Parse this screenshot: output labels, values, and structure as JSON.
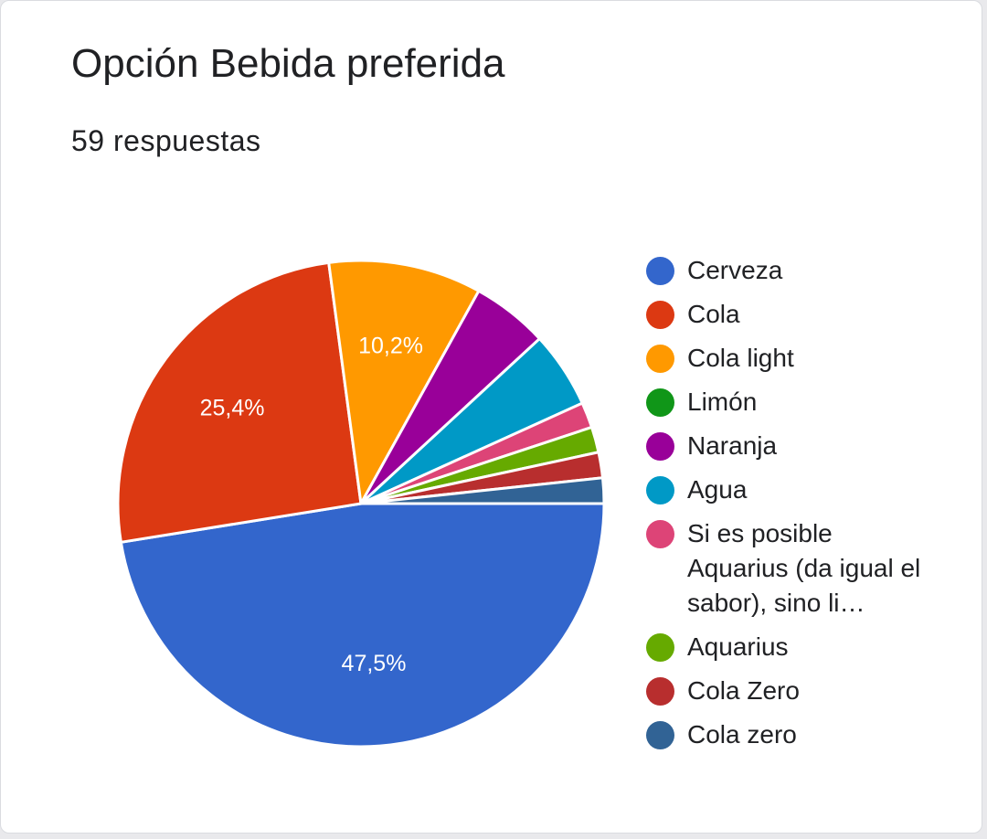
{
  "header": {
    "title": "Opción Bebida preferida",
    "subtitle": "59 respuestas"
  },
  "chart_data": {
    "type": "pie",
    "title": "Opción Bebida preferida",
    "subtitle": "59 respuestas",
    "legend_position": "right",
    "slices": [
      {
        "label": "Cerveza",
        "count": 28,
        "percent_label": "47,5%",
        "color": "#3366cc"
      },
      {
        "label": "Cola",
        "count": 15,
        "percent_label": "25,4%",
        "color": "#dc3912"
      },
      {
        "label": "Cola light",
        "count": 6,
        "percent_label": "10,2%",
        "color": "#ff9900"
      },
      {
        "label": "Limón",
        "count": 0,
        "percent_label": "",
        "color": "#109618"
      },
      {
        "label": "Naranja",
        "count": 3,
        "percent_label": "",
        "color": "#990099"
      },
      {
        "label": "Agua",
        "count": 3,
        "percent_label": "",
        "color": "#0099c6"
      },
      {
        "label": "Si es posible Aquarius (da igual el sabor), sino li…",
        "count": 1,
        "percent_label": "",
        "color": "#dd4477"
      },
      {
        "label": "Aquarius",
        "count": 1,
        "percent_label": "",
        "color": "#66aa00"
      },
      {
        "label": "Cola Zero",
        "count": 1,
        "percent_label": "",
        "color": "#b82e2e"
      },
      {
        "label": "Cola zero",
        "count": 1,
        "percent_label": "",
        "color": "#316395"
      }
    ]
  }
}
